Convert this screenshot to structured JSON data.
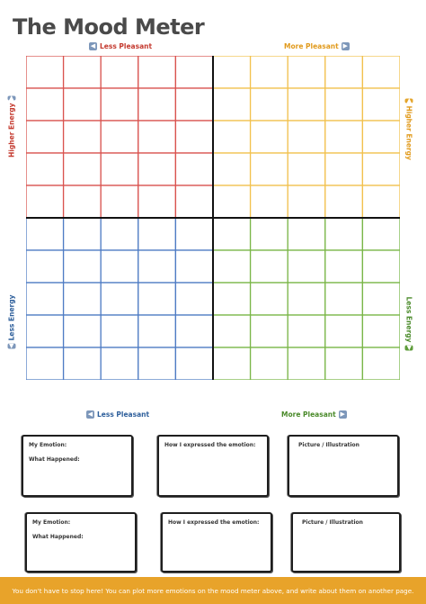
{
  "title": "The Mood Meter",
  "axis_labels": {
    "top_left": "Less Pleasant",
    "top_right": "More Pleasant",
    "bottom_left": "Less Pleasant",
    "bottom_right": "More Pleasant",
    "left_upper": "Higher Energy",
    "left_lower": "Less Energy",
    "right_upper": "Higher Energy",
    "right_lower": "Less Energy"
  },
  "quadrant_colors": {
    "top_left": "#d9534f",
    "top_right": "#f2c14e",
    "bottom_left": "#4f7cc4",
    "bottom_right": "#7ab648",
    "divider": "#111111"
  },
  "grid": {
    "columns_per_quadrant": 5,
    "rows_per_quadrant": 5
  },
  "entries": [
    {
      "my_emotion": "My Emotion:",
      "what_happened": "What Happened:",
      "how_expressed": "How I expressed the emotion:",
      "picture": "Picture / Illustration"
    },
    {
      "my_emotion": "My Emotion:",
      "what_happened": "What Happened:",
      "how_expressed": "How I expressed the emotion:",
      "picture": "Picture / Illustration"
    }
  ],
  "footer": "You don't have to stop here! You can plot more emotions on the mood meter above, and write about them on another page.",
  "footer_color": "#e8a32a"
}
